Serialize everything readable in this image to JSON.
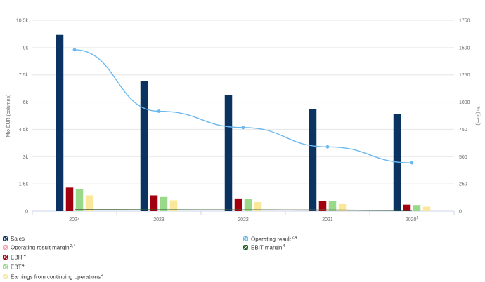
{
  "chart_data": {
    "type": "bar",
    "categories": [
      "2024",
      "2023",
      "2022",
      "2021",
      "2020"
    ],
    "category_sups": [
      "",
      "",
      "",
      "",
      "1"
    ],
    "y_left": {
      "label": "Mio EUR (columns)",
      "min": 0,
      "max": 10500,
      "ticks": [
        0,
        1500,
        3000,
        4500,
        6000,
        7500,
        9000,
        10500
      ],
      "tick_labels": [
        "0",
        "1.5k",
        "3k",
        "4.5k",
        "6k",
        "7.5k",
        "9k",
        "10.5k"
      ]
    },
    "y_right": {
      "label": "% (lines)",
      "min": 0,
      "max": 1750,
      "ticks": [
        0,
        250,
        500,
        750,
        1000,
        1250,
        1500,
        1750
      ],
      "tick_labels": [
        "0",
        "250",
        "500",
        "750",
        "1000",
        "1250",
        "1500",
        "1750"
      ]
    },
    "grid": true,
    "series": [
      {
        "name": "Sales",
        "type": "column",
        "axis": "left",
        "color": "#0b3361",
        "values": [
          9700,
          7150,
          6380,
          5620,
          5350
        ]
      },
      {
        "name": "EBIT",
        "sup": "4",
        "type": "column",
        "axis": "left",
        "color": "#a3000f",
        "values": [
          1300,
          870,
          700,
          560,
          360
        ]
      },
      {
        "name": "EBT",
        "sup": "4",
        "type": "column",
        "axis": "left",
        "color": "#9ad88a",
        "values": [
          1200,
          780,
          670,
          540,
          340
        ]
      },
      {
        "name": "Earnings from continuing operations",
        "sup": "4",
        "type": "column",
        "axis": "left",
        "color": "#fbe79a",
        "values": [
          870,
          600,
          500,
          390,
          250
        ]
      },
      {
        "name": "Operating result",
        "sup": "2,4",
        "type": "line",
        "axis": "left",
        "color": "#6bb8ef",
        "values": [
          8880,
          5500,
          4600,
          3540,
          2660
        ]
      },
      {
        "name": "Operating result margin",
        "sup": "2,4",
        "type": "line",
        "axis": "right",
        "color": "#f5a3b0",
        "values": [
          14,
          12,
          11,
          10,
          7
        ]
      },
      {
        "name": "EBIT margin",
        "sup": "4",
        "type": "line",
        "axis": "right",
        "color": "#1e5b22",
        "values": [
          13,
          12,
          11,
          10,
          7
        ]
      }
    ],
    "legend": {
      "placement": "bottom",
      "items": [
        {
          "name": "Sales",
          "sup": "",
          "color": "#0b3361"
        },
        {
          "name": "Operating result",
          "sup": "2,4",
          "color": "#6bb8ef"
        },
        {
          "name": "Operating result margin",
          "sup": "2,4",
          "color": "#f5a3b0"
        },
        {
          "name": "EBIT margin",
          "sup": "4",
          "color": "#1e5b22"
        },
        {
          "name": "EBIT",
          "sup": "4",
          "color": "#a3000f"
        },
        {
          "name": "EBT",
          "sup": "4",
          "color": "#9ad88a"
        },
        {
          "name": "Earnings from continuing operations",
          "sup": "4",
          "color": "#fbe79a"
        }
      ]
    }
  }
}
